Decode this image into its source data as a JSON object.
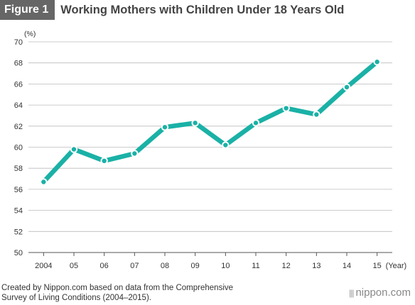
{
  "header": {
    "figure_label": "Figure 1",
    "title": "Working Mothers with Children Under 18 Years Old"
  },
  "chart_data": {
    "type": "line",
    "title": "Working Mothers with Children Under 18 Years Old",
    "ylabel": "(%)",
    "xlabel": "(Year)",
    "categories": [
      "2004",
      "05",
      "06",
      "07",
      "08",
      "09",
      "10",
      "11",
      "12",
      "13",
      "14",
      "15"
    ],
    "series": [
      {
        "values": [
          56.7,
          59.8,
          58.7,
          59.4,
          61.9,
          62.3,
          60.2,
          62.3,
          63.7,
          63.1,
          65.7,
          68.1
        ]
      }
    ],
    "ylim": [
      50,
      70
    ],
    "yticks": [
      50,
      52,
      54,
      56,
      58,
      60,
      62,
      64,
      66,
      68,
      70
    ],
    "grid": true,
    "line_color": "#1ab1a6"
  },
  "footer": {
    "source_line1": "Created by Nippon.com based on data from the Comprehensive",
    "source_line2": "Survey of Living Conditions (2004–2015).",
    "brand_mark": "|||",
    "brand": "nippon.com"
  }
}
